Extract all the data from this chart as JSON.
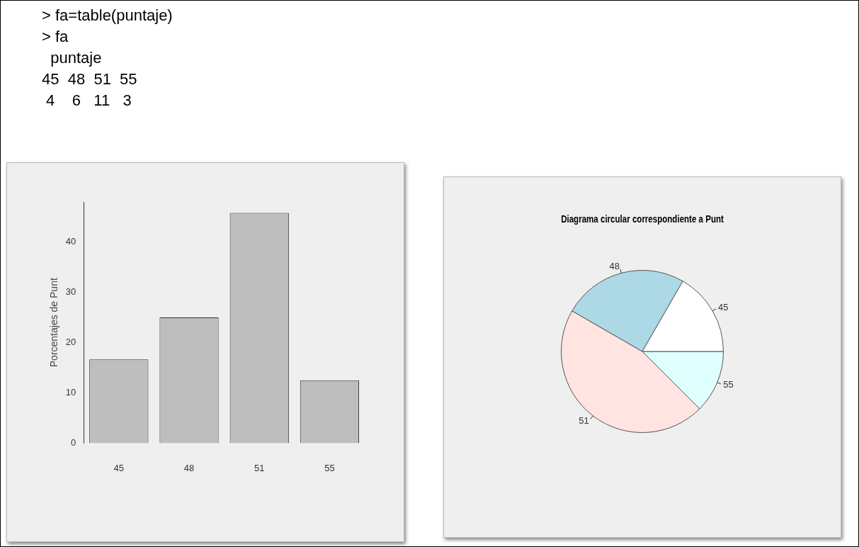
{
  "chart_data": [
    {
      "type": "other",
      "annotations": [
        "> fa=table(puntaje)",
        "> fa",
        "  puntaje",
        "45  48  51  55",
        " 4    6   11   3"
      ]
    },
    {
      "type": "bar",
      "ylabel": "Porcentajes de Punt",
      "categories": [
        "45",
        "48",
        "51",
        "55"
      ],
      "values": [
        16.67,
        25,
        45.83,
        12.5
      ],
      "color": "#bebebe",
      "ylim": [
        0,
        48
      ],
      "yticks": [
        0,
        10,
        20,
        30,
        40
      ]
    },
    {
      "type": "pie",
      "title": "Diagrama circular correspondiente a Punt",
      "categories": [
        "45",
        "48",
        "51",
        "55"
      ],
      "values": [
        16.67,
        25,
        45.83,
        12.5
      ],
      "colors": [
        "#ffffff",
        "#add8e6",
        "#ffe4e1",
        "#e0ffff"
      ]
    }
  ]
}
